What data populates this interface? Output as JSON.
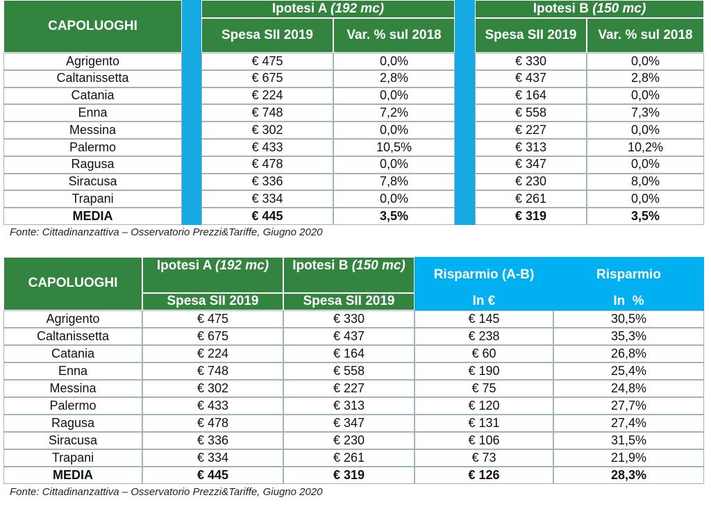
{
  "table1": {
    "header": {
      "capoluoghi": "CAPOLUOGHI",
      "ipotesi_a": {
        "label": "Ipotesi A",
        "note": "(192 mc)"
      },
      "ipotesi_b": {
        "label": "Ipotesi B",
        "note": "(150 mc)"
      },
      "spesa_a": "Spesa SII 2019",
      "var_a": "Var. % sul 2018",
      "spesa_b": "Spesa SII 2019",
      "var_b": "Var. % sul 2018"
    },
    "rows": [
      [
        "Agrigento",
        "€ 475",
        "0,0%",
        "€ 330",
        "0,0%"
      ],
      [
        "Caltanissetta",
        "€ 675",
        "2,8%",
        "€ 437",
        "2,8%"
      ],
      [
        "Catania",
        "€ 224",
        "0,0%",
        "€ 164",
        "0,0%"
      ],
      [
        "Enna",
        "€ 748",
        "7,2%",
        "€ 558",
        "7,3%"
      ],
      [
        "Messina",
        "€ 302",
        "0,0%",
        "€ 227",
        "0,0%"
      ],
      [
        "Palermo",
        "€ 433",
        "10,5%",
        "€ 313",
        "10,2%"
      ],
      [
        "Ragusa",
        "€ 478",
        "0,0%",
        "€ 347",
        "0,0%"
      ],
      [
        "Siracusa",
        "€ 336",
        "7,8%",
        "€ 230",
        "8,0%"
      ],
      [
        "Trapani",
        "€ 334",
        "0,0%",
        "€ 261",
        "0,0%"
      ],
      [
        "MEDIA",
        "€ 445",
        "3,5%",
        "€ 319",
        "3,5%"
      ]
    ],
    "source": "Fonte: Cittadinanzattiva – Osservatorio Prezzi&Tariffe, Giugno 2020"
  },
  "table2": {
    "header": {
      "capoluoghi": "CAPOLUOGHI",
      "ipotesi_a": {
        "label": "Ipotesi A",
        "note": "(192 mc)"
      },
      "ipotesi_b": {
        "label": "Ipotesi B",
        "note": "(150 mc)"
      },
      "risparmio_ab": "Risparmio (A-B)",
      "risparmio_pct": "Risparmio",
      "spesa_a": "Spesa SII 2019",
      "spesa_b": "Spesa SII 2019",
      "in_eur": "In €",
      "in_pct": "In  %"
    },
    "rows": [
      [
        "Agrigento",
        "€ 475",
        "€ 330",
        "€ 145",
        "30,5%"
      ],
      [
        "Caltanissetta",
        "€ 675",
        "€ 437",
        "€ 238",
        "35,3%"
      ],
      [
        "Catania",
        "€ 224",
        "€ 164",
        "€ 60",
        "26,8%"
      ],
      [
        "Enna",
        "€ 748",
        "€ 558",
        "€ 190",
        "25,4%"
      ],
      [
        "Messina",
        "€ 302",
        "€ 227",
        "€ 75",
        "24,8%"
      ],
      [
        "Palermo",
        "€ 433",
        "€ 313",
        "€ 120",
        "27,7%"
      ],
      [
        "Ragusa",
        "€ 478",
        "€ 347",
        "€ 131",
        "27,4%"
      ],
      [
        "Siracusa",
        "€ 336",
        "€ 230",
        "€ 106",
        "31,5%"
      ],
      [
        "Trapani",
        "€ 334",
        "€ 261",
        "€ 73",
        "21,9%"
      ],
      [
        "MEDIA",
        "€ 445",
        "€ 319",
        "€ 126",
        "28,3%"
      ]
    ],
    "source": "Fonte: Cittadinanzattiva – Osservatorio Prezzi&Tariffe, Giugno 2020"
  }
}
